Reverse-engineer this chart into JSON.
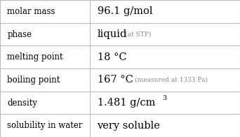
{
  "rows": [
    {
      "label": "molar mass",
      "value": "96.1 g/mol",
      "note": "",
      "superscript": ""
    },
    {
      "label": "phase",
      "value": "liquid",
      "note": "(at STP)",
      "superscript": ""
    },
    {
      "label": "melting point",
      "value": "18 °C",
      "note": "",
      "superscript": ""
    },
    {
      "label": "boiling point",
      "value": "167 °C",
      "note": "(measured at 1333 Pa)",
      "superscript": ""
    },
    {
      "label": "density",
      "value": "1.481 g/cm",
      "note": "",
      "superscript": "3"
    },
    {
      "label": "solubility in water",
      "value": "very soluble",
      "note": "",
      "superscript": ""
    }
  ],
  "col_split": 0.375,
  "bg_color": "#ffffff",
  "border_color": "#bbbbbb",
  "text_color": "#000000",
  "note_color": "#888888",
  "label_fontsize": 8.5,
  "value_fontsize": 10.5,
  "note_fontsize": 6.5,
  "super_fontsize": 7.0
}
